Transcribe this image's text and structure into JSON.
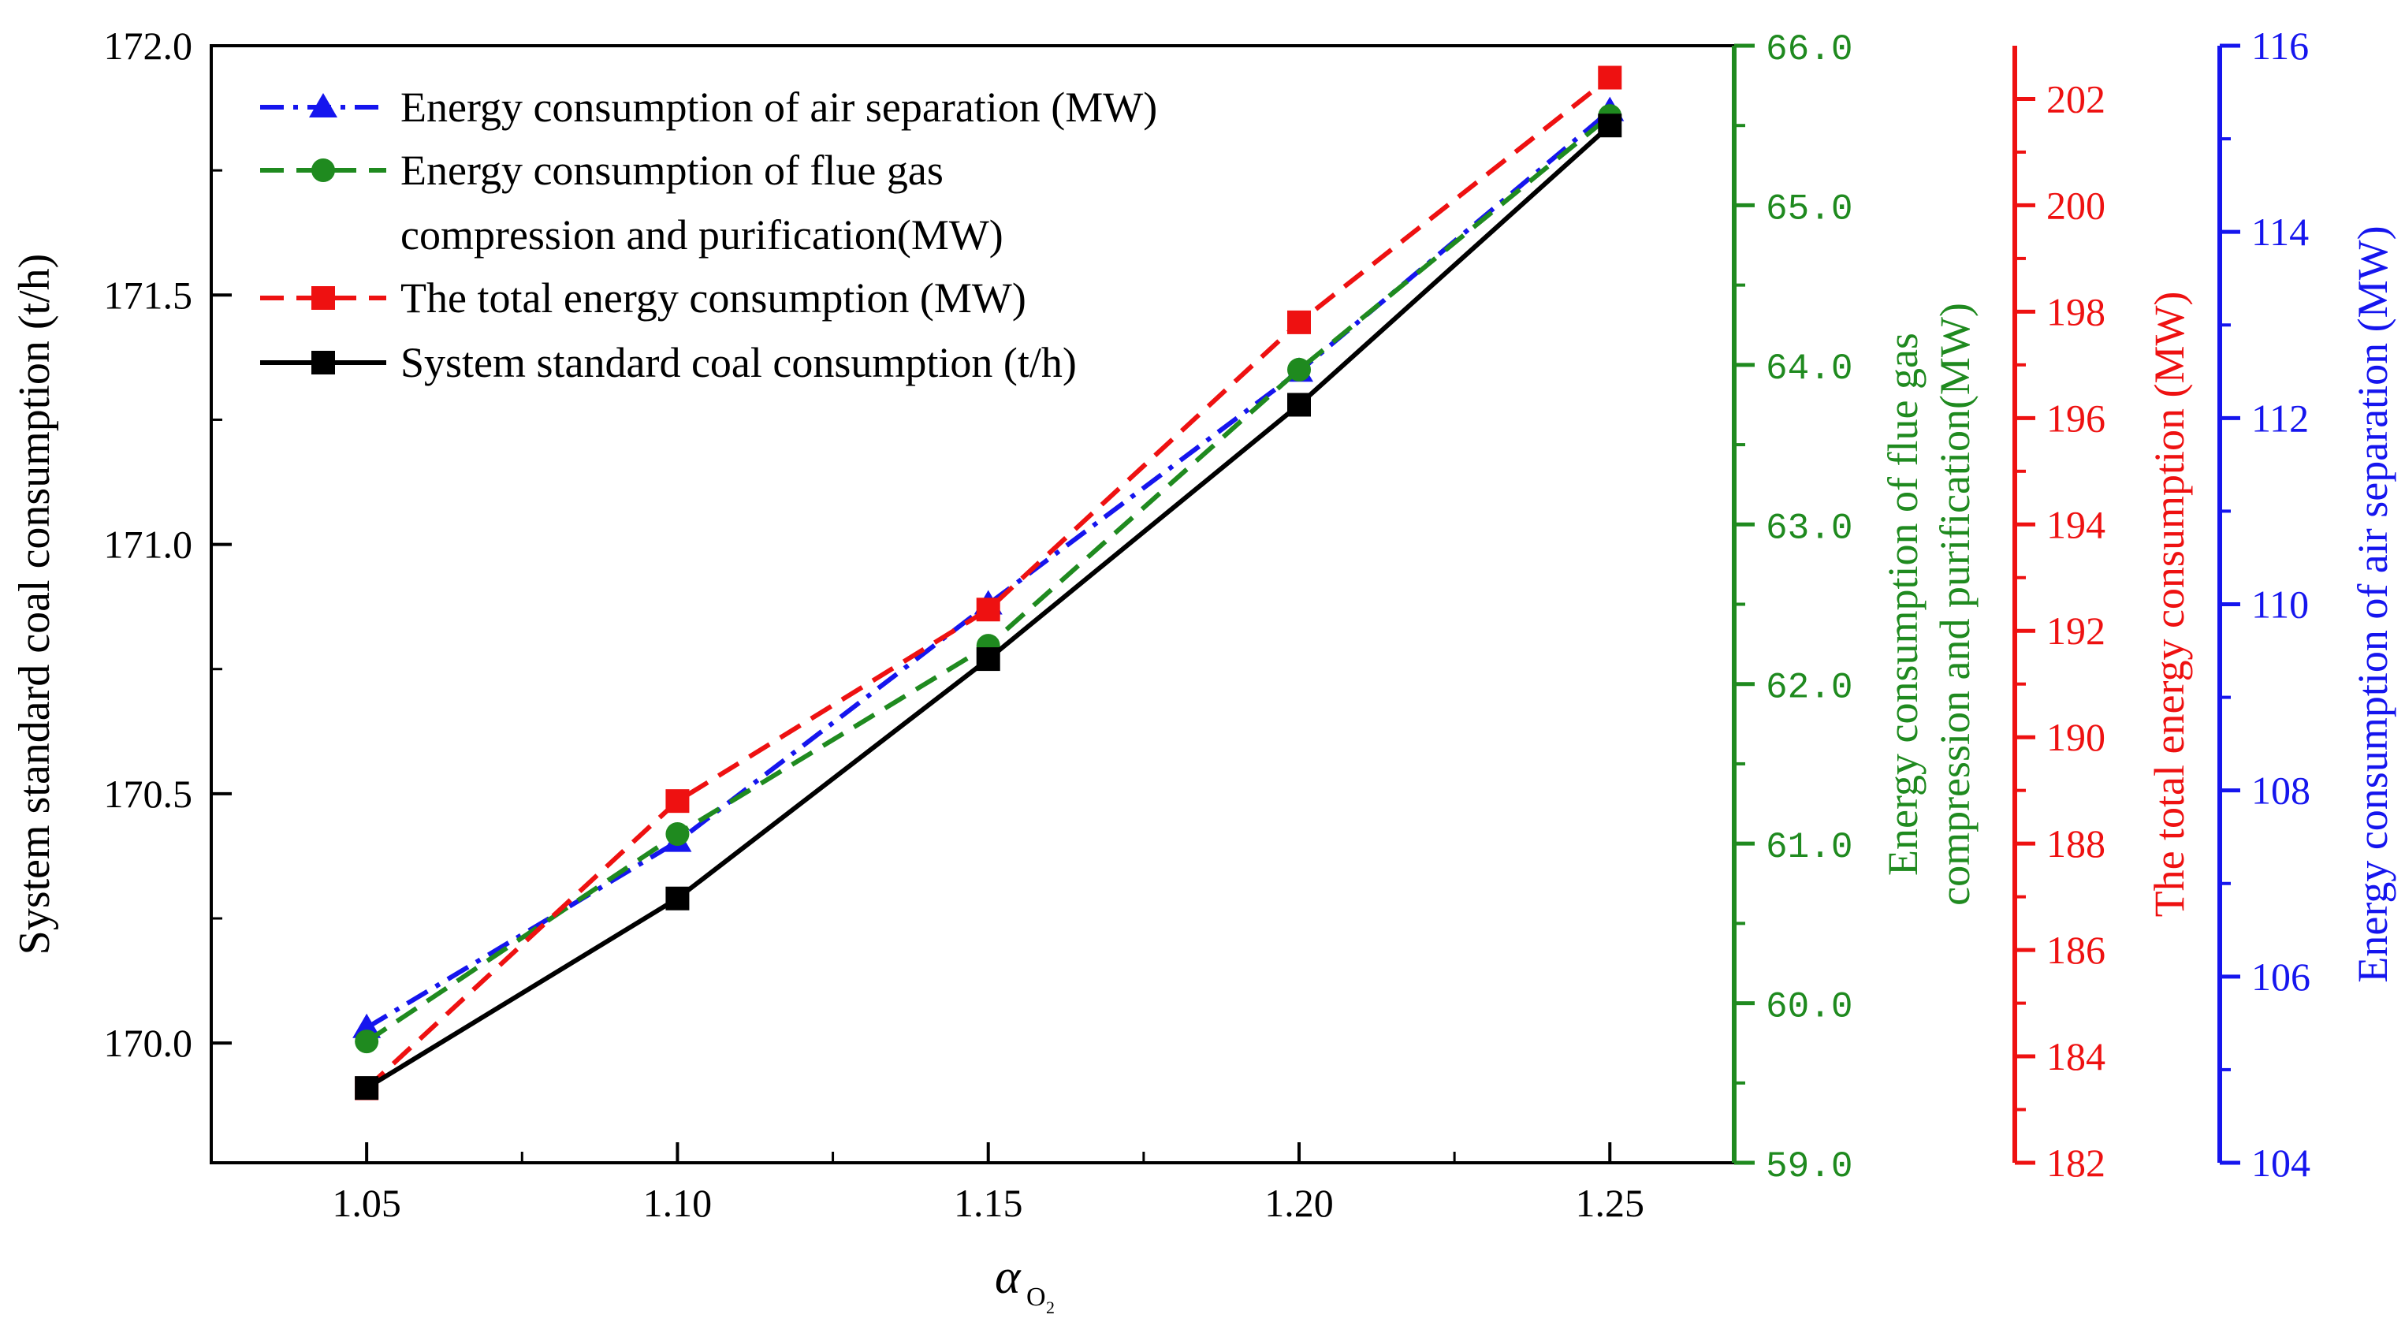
{
  "chart_data": {
    "type": "line",
    "x": [
      1.05,
      1.1,
      1.15,
      1.2,
      1.25
    ],
    "x_tick_labels": [
      "1.05",
      "1.10",
      "1.15",
      "1.20",
      "1.25"
    ],
    "xlim": [
      1.025,
      1.27
    ],
    "xlabel_main": "α",
    "xlabel_sub": "O",
    "xlabel_subsub": "2",
    "axes": {
      "left": {
        "label": "System standard coal consumption (t/h)",
        "ylim": [
          169.76,
          172.0
        ],
        "ticks": [
          "170.0",
          "170.5",
          "171.0",
          "171.5",
          "172.0"
        ],
        "tick_values": [
          170.0,
          170.5,
          171.0,
          171.5,
          172.0
        ],
        "color": "#000000"
      },
      "green": {
        "label_line1": "Energy consumption of flue gas",
        "label_line2": "compression and purification(MW)",
        "ylim": [
          59.0,
          66.0
        ],
        "ticks": [
          "59.0",
          "60.0",
          "61.0",
          "62.0",
          "63.0",
          "64.0",
          "65.0",
          "66.0"
        ],
        "tick_values": [
          59,
          60,
          61,
          62,
          63,
          64,
          65,
          66
        ],
        "color": "#1f8a1f"
      },
      "red": {
        "label": "The total energy consumption (MW)",
        "ylim": [
          182,
          203
        ],
        "ticks": [
          "182",
          "184",
          "186",
          "188",
          "190",
          "192",
          "194",
          "196",
          "198",
          "200",
          "202"
        ],
        "tick_values": [
          182,
          184,
          186,
          188,
          190,
          192,
          194,
          196,
          198,
          200,
          202
        ],
        "color": "#ee1111"
      },
      "blue": {
        "label": "Energy consumption of air separation (MW)",
        "ylim": [
          104,
          116
        ],
        "ticks": [
          "104",
          "106",
          "108",
          "110",
          "112",
          "114",
          "116"
        ],
        "tick_values": [
          104,
          106,
          108,
          110,
          112,
          114,
          116
        ],
        "color": "#1515ee"
      }
    },
    "series": [
      {
        "name": "Energy consumption of air separation (MW)",
        "axis": "blue",
        "color": "#1515ee",
        "marker": "triangle",
        "dash": "dashdot",
        "values": [
          105.45,
          107.45,
          110.0,
          112.5,
          115.3
        ]
      },
      {
        "name": "Energy consumption of flue gas",
        "name_line2": "compression and purification(MW)",
        "axis": "green",
        "color": "#1f8a1f",
        "marker": "circle",
        "dash": "dash",
        "values": [
          59.76,
          61.06,
          62.24,
          63.97,
          65.56
        ]
      },
      {
        "name": "The total energy consumption (MW)",
        "axis": "red",
        "color": "#ee1111",
        "marker": "square",
        "dash": "dash",
        "values": [
          183.4,
          188.8,
          192.4,
          197.8,
          202.4
        ]
      },
      {
        "name": "System standard coal consumption (t/h)",
        "axis": "left",
        "color": "#000000",
        "marker": "square",
        "dash": "solid",
        "values": [
          169.91,
          170.29,
          170.77,
          171.28,
          171.84
        ]
      }
    ],
    "legend_position": "top-left"
  }
}
